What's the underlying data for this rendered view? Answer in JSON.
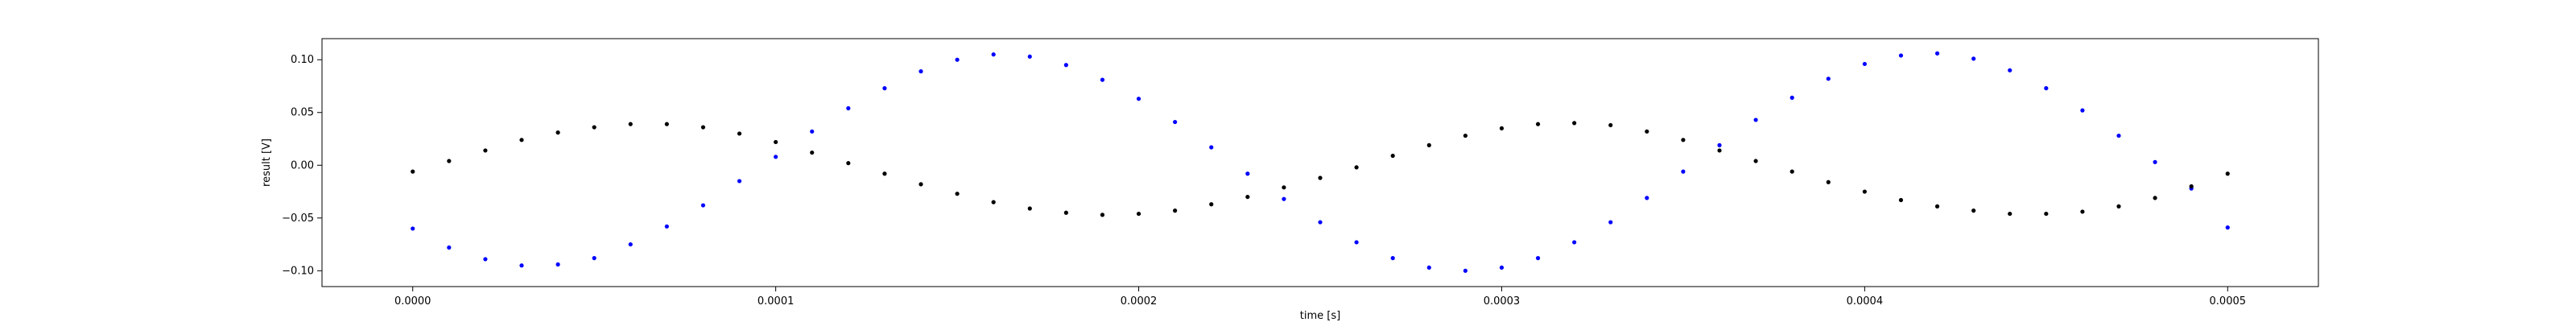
{
  "chart_data": {
    "type": "scatter",
    "xlabel": "time [s]",
    "ylabel": "result [V]",
    "xlim": [
      -2.5e-05,
      0.000525
    ],
    "ylim": [
      -0.115,
      0.12
    ],
    "x_ticks": [
      "0.0000",
      "0.0001",
      "0.0002",
      "0.0003",
      "0.0004",
      "0.0005"
    ],
    "x_tick_values": [
      0,
      0.0001,
      0.0002,
      0.0003,
      0.0004,
      0.0005
    ],
    "y_ticks": [
      "−0.10",
      "−0.05",
      "0.00",
      "0.05",
      "0.10"
    ],
    "y_tick_values": [
      -0.1,
      -0.05,
      0.0,
      0.05,
      0.1
    ],
    "grid": false,
    "series": [
      {
        "color": "#0000ff",
        "marker": "dot",
        "x": [
          0.0,
          1e-05,
          2e-05,
          3e-05,
          4e-05,
          5e-05,
          6e-05,
          7e-05,
          8e-05,
          9e-05,
          0.0001,
          0.00011,
          0.00012,
          0.00013,
          0.00014,
          0.00015,
          0.00016,
          0.00017,
          0.00018,
          0.00019,
          0.0002,
          0.00021,
          0.00022,
          0.00023,
          0.00024,
          0.00025,
          0.00026,
          0.00027,
          0.00028,
          0.00029,
          0.0003,
          0.00031,
          0.00032,
          0.00033,
          0.00034,
          0.00035,
          0.00036,
          0.00037,
          0.00038,
          0.00039,
          0.0004,
          0.00041,
          0.00042,
          0.00043,
          0.00044,
          0.00045,
          0.00046,
          0.00047,
          0.00048,
          0.00049,
          0.0005
        ],
        "y": [
          -0.06,
          -0.078,
          -0.089,
          -0.095,
          -0.094,
          -0.088,
          -0.075,
          -0.058,
          -0.038,
          -0.015,
          0.008,
          0.032,
          0.054,
          0.073,
          0.089,
          0.1,
          0.105,
          0.103,
          0.095,
          0.081,
          0.063,
          0.041,
          0.017,
          -0.008,
          -0.032,
          -0.054,
          -0.073,
          -0.088,
          -0.097,
          -0.1,
          -0.097,
          -0.088,
          -0.073,
          -0.054,
          -0.031,
          -0.006,
          0.019,
          0.043,
          0.064,
          0.082,
          0.096,
          0.104,
          0.106,
          0.101,
          0.09,
          0.073,
          0.052,
          0.028,
          0.003,
          -0.022,
          -0.059
        ]
      },
      {
        "color": "#000000",
        "marker": "dot",
        "x": [
          0.0,
          1e-05,
          2e-05,
          3e-05,
          4e-05,
          5e-05,
          6e-05,
          7e-05,
          8e-05,
          9e-05,
          0.0001,
          0.00011,
          0.00012,
          0.00013,
          0.00014,
          0.00015,
          0.00016,
          0.00017,
          0.00018,
          0.00019,
          0.0002,
          0.00021,
          0.00022,
          0.00023,
          0.00024,
          0.00025,
          0.00026,
          0.00027,
          0.00028,
          0.00029,
          0.0003,
          0.00031,
          0.00032,
          0.00033,
          0.00034,
          0.00035,
          0.00036,
          0.00037,
          0.00038,
          0.00039,
          0.0004,
          0.00041,
          0.00042,
          0.00043,
          0.00044,
          0.00045,
          0.00046,
          0.00047,
          0.00048,
          0.00049,
          0.0005
        ],
        "y": [
          -0.006,
          0.004,
          0.014,
          0.024,
          0.031,
          0.036,
          0.039,
          0.039,
          0.036,
          0.03,
          0.022,
          0.012,
          0.002,
          -0.008,
          -0.018,
          -0.027,
          -0.035,
          -0.041,
          -0.045,
          -0.047,
          -0.046,
          -0.043,
          -0.037,
          -0.03,
          -0.021,
          -0.012,
          -0.002,
          0.009,
          0.019,
          0.028,
          0.035,
          0.039,
          0.04,
          0.038,
          0.032,
          0.024,
          0.014,
          0.004,
          -0.006,
          -0.016,
          -0.025,
          -0.033,
          -0.039,
          -0.043,
          -0.046,
          -0.046,
          -0.044,
          -0.039,
          -0.031,
          -0.02,
          -0.008
        ]
      }
    ]
  }
}
